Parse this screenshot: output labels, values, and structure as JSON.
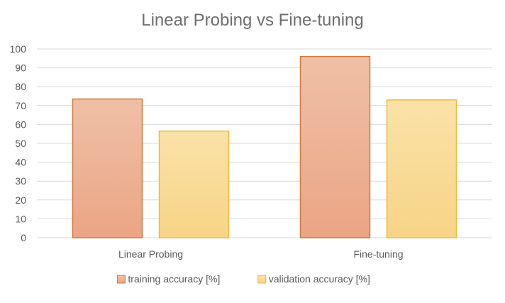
{
  "chart_data": {
    "type": "bar",
    "title": "Linear Probing vs Fine-tuning",
    "xlabel": "",
    "ylabel": "",
    "categories": [
      "Linear Probing",
      "Fine-tuning"
    ],
    "series": [
      {
        "name": "training accuracy [%]",
        "values": [
          73.5,
          96
        ],
        "color": "#E9A888",
        "stroke": "#D07A3C"
      },
      {
        "name": "validation accuracy [%]",
        "values": [
          56.5,
          73
        ],
        "color": "#F8D78C",
        "stroke": "#F0B93F"
      }
    ],
    "ylim": [
      0,
      100
    ],
    "yticks": [
      0,
      10,
      20,
      30,
      40,
      50,
      60,
      70,
      80,
      90,
      100
    ],
    "grid": true,
    "legend": "bottom"
  }
}
